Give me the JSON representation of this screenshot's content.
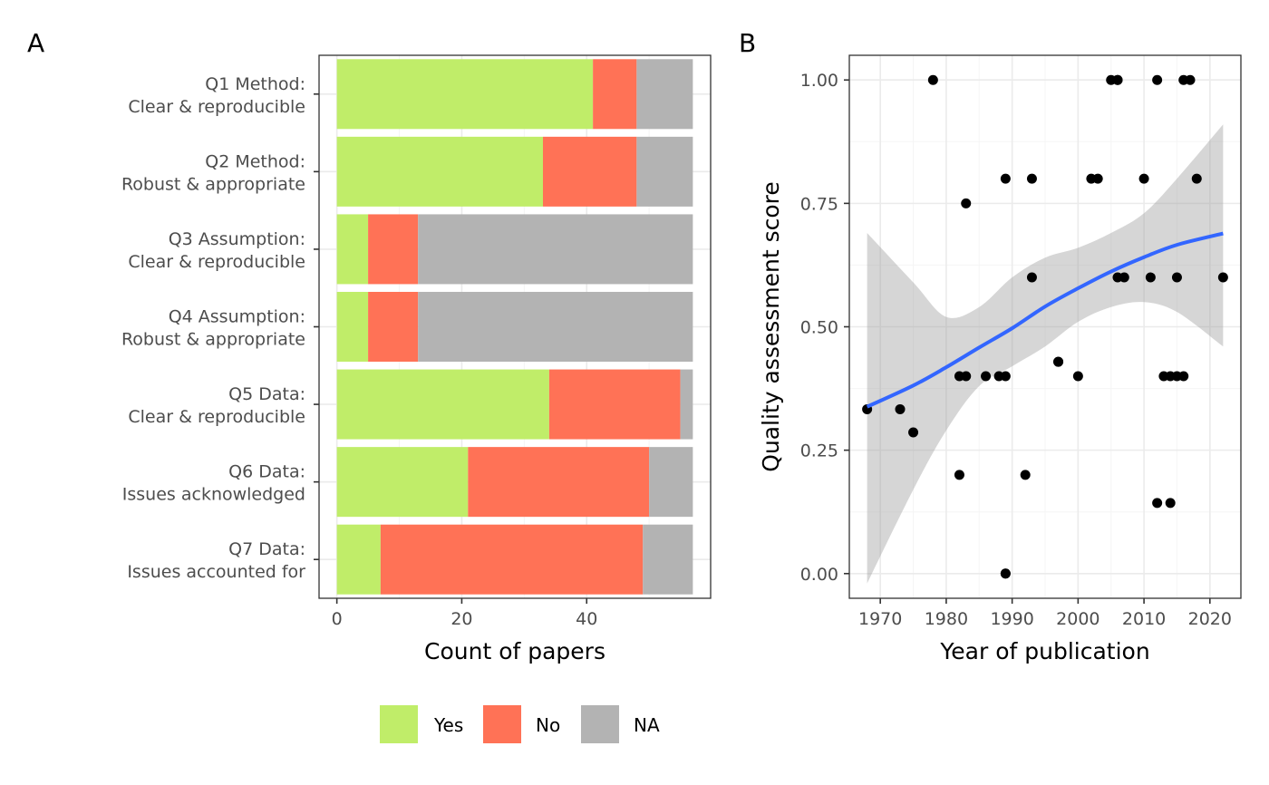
{
  "chart_data": [
    {
      "panel": "A",
      "type": "bar",
      "orientation": "horizontal",
      "stacked": true,
      "categories": [
        [
          "Q1 Method:",
          "Clear & reproducible"
        ],
        [
          "Q2 Method:",
          "Robust & appropriate"
        ],
        [
          "Q3 Assumption:",
          "Clear & reproducible"
        ],
        [
          "Q4 Assumption:",
          "Robust & appropriate"
        ],
        [
          "Q5 Data:",
          "Clear & reproducible"
        ],
        [
          "Q6 Data:",
          "Issues acknowledged"
        ],
        [
          "Q7 Data:",
          "Issues accounted for"
        ]
      ],
      "series": [
        {
          "name": "Yes",
          "color": "#c0ed69",
          "values": [
            41,
            33,
            5,
            5,
            34,
            21,
            7
          ]
        },
        {
          "name": "No",
          "color": "#ff7256",
          "values": [
            7,
            15,
            8,
            8,
            21,
            29,
            42
          ]
        },
        {
          "name": "NA",
          "color": "#b3b3b3",
          "values": [
            9,
            9,
            44,
            44,
            2,
            7,
            8
          ]
        }
      ],
      "xlabel": "Count of papers",
      "ylabel": "",
      "xlim": [
        -2.85,
        59.85
      ],
      "xticks": [
        0,
        20,
        40
      ],
      "grid": true,
      "legend": "bottom"
    },
    {
      "panel": "B",
      "type": "scatter",
      "xlabel": "Year of publication",
      "ylabel": "Quality assessment score",
      "xlim": [
        1965.3,
        2024.7
      ],
      "ylim": [
        -0.05,
        1.05
      ],
      "xticks": [
        1970,
        1980,
        1990,
        2000,
        2010,
        2020
      ],
      "yticks": [
        0.0,
        0.25,
        0.5,
        0.75,
        1.0
      ],
      "grid": true,
      "points": [
        {
          "x": 1968,
          "y": 0.333
        },
        {
          "x": 1973,
          "y": 0.333
        },
        {
          "x": 1975,
          "y": 0.286
        },
        {
          "x": 1978,
          "y": 1.0
        },
        {
          "x": 1982,
          "y": 0.4
        },
        {
          "x": 1982,
          "y": 0.2
        },
        {
          "x": 1983,
          "y": 0.75
        },
        {
          "x": 1983,
          "y": 0.4
        },
        {
          "x": 1986,
          "y": 0.4
        },
        {
          "x": 1988,
          "y": 0.4
        },
        {
          "x": 1989,
          "y": 0.8
        },
        {
          "x": 1989,
          "y": 0.4
        },
        {
          "x": 1989,
          "y": 0.0
        },
        {
          "x": 1989,
          "y": 0.0
        },
        {
          "x": 1992,
          "y": 0.2
        },
        {
          "x": 1993,
          "y": 0.8
        },
        {
          "x": 1993,
          "y": 0.6
        },
        {
          "x": 1997,
          "y": 0.429
        },
        {
          "x": 1997,
          "y": 0.429
        },
        {
          "x": 2000,
          "y": 0.4
        },
        {
          "x": 2002,
          "y": 0.8
        },
        {
          "x": 2003,
          "y": 0.8
        },
        {
          "x": 2005,
          "y": 1.0
        },
        {
          "x": 2006,
          "y": 1.0
        },
        {
          "x": 2006,
          "y": 1.0
        },
        {
          "x": 2006,
          "y": 0.6
        },
        {
          "x": 2007,
          "y": 0.6
        },
        {
          "x": 2010,
          "y": 0.8
        },
        {
          "x": 2011,
          "y": 0.6
        },
        {
          "x": 2012,
          "y": 1.0
        },
        {
          "x": 2012,
          "y": 0.143
        },
        {
          "x": 2013,
          "y": 0.4
        },
        {
          "x": 2014,
          "y": 0.4
        },
        {
          "x": 2014,
          "y": 0.143
        },
        {
          "x": 2015,
          "y": 0.4
        },
        {
          "x": 2015,
          "y": 0.6
        },
        {
          "x": 2016,
          "y": 1.0
        },
        {
          "x": 2016,
          "y": 0.4
        },
        {
          "x": 2017,
          "y": 1.0
        },
        {
          "x": 2018,
          "y": 0.8
        },
        {
          "x": 2022,
          "y": 0.6
        }
      ],
      "smooth": {
        "color": "#3366ff",
        "x": [
          1968,
          1975,
          1980,
          1985,
          1990,
          1995,
          2000,
          2005,
          2010,
          2015,
          2022
        ],
        "y": [
          0.338,
          0.381,
          0.418,
          0.458,
          0.497,
          0.541,
          0.578,
          0.612,
          0.641,
          0.666,
          0.689
        ],
        "lower": [
          -0.02,
          0.17,
          0.29,
          0.38,
          0.42,
          0.46,
          0.51,
          0.54,
          0.55,
          0.53,
          0.46
        ],
        "upper": [
          0.69,
          0.59,
          0.52,
          0.54,
          0.6,
          0.64,
          0.66,
          0.69,
          0.73,
          0.8,
          0.91
        ]
      }
    }
  ],
  "panel_tags": [
    "A",
    "B"
  ]
}
